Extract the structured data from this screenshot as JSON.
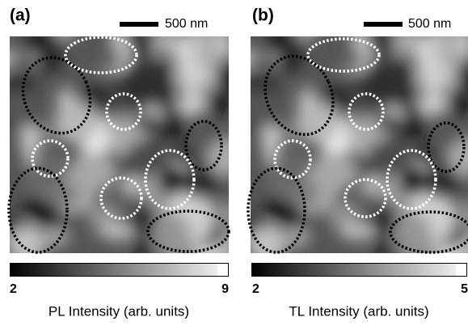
{
  "panels": [
    {
      "label": "(a)",
      "scale_bar": "500 nm",
      "colorbar": {
        "min": "2",
        "max": "9"
      },
      "axis_label": "PL Intensity (arb. units)"
    },
    {
      "label": "(b)",
      "scale_bar": "500 nm",
      "colorbar": {
        "min": "2",
        "max": "5"
      },
      "axis_label": "TL Intensity (arb. units)"
    }
  ]
}
